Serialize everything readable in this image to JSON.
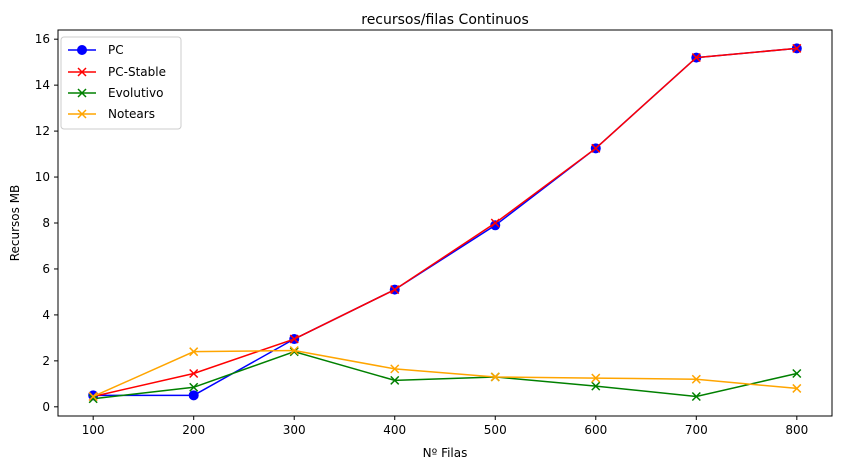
{
  "chart_data": {
    "type": "line",
    "title": "recursos/filas Continuos",
    "xlabel": "Nº Filas",
    "ylabel": "Recursos MB",
    "x": [
      100,
      200,
      300,
      400,
      500,
      600,
      700,
      800
    ],
    "xlim": [
      65,
      835
    ],
    "ylim": [
      -0.4,
      16.4
    ],
    "xticks": [
      100,
      200,
      300,
      400,
      500,
      600,
      700,
      800
    ],
    "yticks": [
      0,
      2,
      4,
      6,
      8,
      10,
      12,
      14,
      16
    ],
    "grid": false,
    "legend_position": "upper-left",
    "series": [
      {
        "name": "PC",
        "color": "#0000ff",
        "marker": "circle",
        "values": [
          0.5,
          0.5,
          2.95,
          5.1,
          7.9,
          11.25,
          15.2,
          15.6
        ]
      },
      {
        "name": "PC-Stable",
        "color": "#ff0000",
        "marker": "x",
        "values": [
          0.45,
          1.45,
          2.95,
          5.1,
          8.0,
          11.25,
          15.2,
          15.6
        ]
      },
      {
        "name": "Evolutivo",
        "color": "#008000",
        "marker": "x",
        "values": [
          0.35,
          0.85,
          2.4,
          1.15,
          1.3,
          0.9,
          0.45,
          1.45
        ]
      },
      {
        "name": "Notears",
        "color": "#ffa500",
        "marker": "x",
        "values": [
          0.45,
          2.4,
          2.45,
          1.65,
          1.3,
          1.25,
          1.2,
          0.8
        ]
      }
    ]
  }
}
